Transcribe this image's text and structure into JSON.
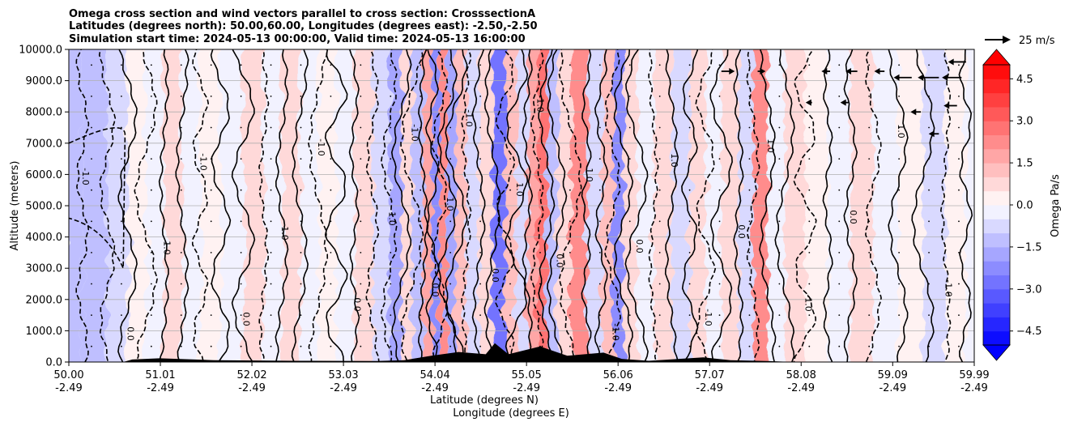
{
  "chart_data": {
    "type": "contour",
    "title_lines": [
      "Omega cross section and wind vectors parallel to cross section: CrosssectionA",
      "Latitudes (degrees north): 50.00,60.00, Longitudes (degrees east): -2.50,-2.50",
      "Simulation start time: 2024-05-13 00:00:00, Valid time: 2024-05-13 16:00:00"
    ],
    "ylabel": "Altitude (meters)",
    "xlabel_lines": [
      "Latitude (degrees N)",
      "Longitude (degrees E)"
    ],
    "xlim": [
      50.0,
      59.99
    ],
    "ylim": [
      0,
      10000
    ],
    "grid": "horizontal",
    "y_ticks": [
      0,
      1000,
      2000,
      3000,
      4000,
      5000,
      6000,
      7000,
      8000,
      9000,
      10000
    ],
    "y_tick_labels": [
      "0.0",
      "1000.0",
      "2000.0",
      "3000.0",
      "4000.0",
      "5000.0",
      "6000.0",
      "7000.0",
      "8000.0",
      "9000.0",
      "10000.0"
    ],
    "x_ticks": [
      {
        "lat": 50.0,
        "lat_label": "50.00",
        "lon_label": "-2.49"
      },
      {
        "lat": 51.01,
        "lat_label": "51.01",
        "lon_label": "-2.49"
      },
      {
        "lat": 52.02,
        "lat_label": "52.02",
        "lon_label": "-2.49"
      },
      {
        "lat": 53.03,
        "lat_label": "53.03",
        "lon_label": "-2.49"
      },
      {
        "lat": 54.04,
        "lat_label": "54.04",
        "lon_label": "-2.49"
      },
      {
        "lat": 55.05,
        "lat_label": "55.05",
        "lon_label": "-2.49"
      },
      {
        "lat": 56.06,
        "lat_label": "56.06",
        "lon_label": "-2.49"
      },
      {
        "lat": 57.07,
        "lat_label": "57.07",
        "lon_label": "-2.49"
      },
      {
        "lat": 58.08,
        "lat_label": "58.08",
        "lon_label": "-2.49"
      },
      {
        "lat": 59.09,
        "lat_label": "59.09",
        "lon_label": "-2.49"
      },
      {
        "lat": 59.99,
        "lat_label": "59.99",
        "lon_label": "-2.49"
      }
    ],
    "colorbar": {
      "label": "Omega Pa/s",
      "range": [
        -5.0,
        5.0
      ],
      "levels_step": 0.5,
      "extend": "both",
      "ticks": [
        -4.5,
        -3.0,
        -1.5,
        0.0,
        1.5,
        3.0,
        4.5
      ],
      "tick_labels": [
        "−4.5",
        "−3.0",
        "−1.5",
        "0.0",
        "1.5",
        "3.0",
        "4.5"
      ],
      "colormap": "bwr",
      "min_color": "#0000ff",
      "mid_color": "#ffffff",
      "max_color": "#ff0000"
    },
    "vector_key": {
      "label": "25 m/s",
      "speed": 25
    },
    "contour_labels": [
      "-1.0",
      "0.0",
      "1.0"
    ],
    "omega_bands": [
      {
        "lat": 50.0,
        "omega": -1.2
      },
      {
        "lat": 50.3,
        "omega": -1.5
      },
      {
        "lat": 50.55,
        "omega": -0.6
      },
      {
        "lat": 50.75,
        "omega": 0.3
      },
      {
        "lat": 50.95,
        "omega": -0.4
      },
      {
        "lat": 51.15,
        "omega": 0.6
      },
      {
        "lat": 51.35,
        "omega": -0.3
      },
      {
        "lat": 51.55,
        "omega": 0.2
      },
      {
        "lat": 51.8,
        "omega": -0.2
      },
      {
        "lat": 52.05,
        "omega": 0.5
      },
      {
        "lat": 52.25,
        "omega": -0.3
      },
      {
        "lat": 52.45,
        "omega": 0.7
      },
      {
        "lat": 52.65,
        "omega": -0.5
      },
      {
        "lat": 52.85,
        "omega": 0.4
      },
      {
        "lat": 53.05,
        "omega": -0.4
      },
      {
        "lat": 53.25,
        "omega": 0.6
      },
      {
        "lat": 53.45,
        "omega": -0.7
      },
      {
        "lat": 53.62,
        "omega": -2.0
      },
      {
        "lat": 53.72,
        "omega": 0.9
      },
      {
        "lat": 53.85,
        "omega": -1.2
      },
      {
        "lat": 53.97,
        "omega": 1.8
      },
      {
        "lat": 54.05,
        "omega": -2.2
      },
      {
        "lat": 54.13,
        "omega": 2.0
      },
      {
        "lat": 54.22,
        "omega": -1.6
      },
      {
        "lat": 54.32,
        "omega": 1.2
      },
      {
        "lat": 54.45,
        "omega": -0.8
      },
      {
        "lat": 54.6,
        "omega": 0.9
      },
      {
        "lat": 54.75,
        "omega": -2.6
      },
      {
        "lat": 54.88,
        "omega": 1.1
      },
      {
        "lat": 55.0,
        "omega": -1.0
      },
      {
        "lat": 55.12,
        "omega": 1.6
      },
      {
        "lat": 55.22,
        "omega": 2.5
      },
      {
        "lat": 55.32,
        "omega": -1.4
      },
      {
        "lat": 55.45,
        "omega": 0.8
      },
      {
        "lat": 55.62,
        "omega": 2.0
      },
      {
        "lat": 55.8,
        "omega": -0.9
      },
      {
        "lat": 55.95,
        "omega": 1.0
      },
      {
        "lat": 56.05,
        "omega": -2.4
      },
      {
        "lat": 56.18,
        "omega": 0.7
      },
      {
        "lat": 56.35,
        "omega": -0.4
      },
      {
        "lat": 56.55,
        "omega": 0.9
      },
      {
        "lat": 56.75,
        "omega": -0.6
      },
      {
        "lat": 56.95,
        "omega": 0.5
      },
      {
        "lat": 57.1,
        "omega": -0.5
      },
      {
        "lat": 57.3,
        "omega": 0.8
      },
      {
        "lat": 57.48,
        "omega": -0.6
      },
      {
        "lat": 57.62,
        "omega": 2.2
      },
      {
        "lat": 57.8,
        "omega": -0.3
      },
      {
        "lat": 58.0,
        "omega": 0.6
      },
      {
        "lat": 58.25,
        "omega": 0.3
      },
      {
        "lat": 58.5,
        "omega": -0.4
      },
      {
        "lat": 58.75,
        "omega": 0.5
      },
      {
        "lat": 59.0,
        "omega": -0.3
      },
      {
        "lat": 59.3,
        "omega": 0.3
      },
      {
        "lat": 59.55,
        "omega": -0.8
      },
      {
        "lat": 59.8,
        "omega": 0.2
      },
      {
        "lat": 59.99,
        "omega": -0.2
      }
    ],
    "terrain": [
      {
        "lat": 50.0,
        "alt": 0
      },
      {
        "lat": 50.6,
        "alt": 0
      },
      {
        "lat": 50.7,
        "alt": 80
      },
      {
        "lat": 51.0,
        "alt": 120
      },
      {
        "lat": 51.6,
        "alt": 60
      },
      {
        "lat": 52.5,
        "alt": 40
      },
      {
        "lat": 53.4,
        "alt": 30
      },
      {
        "lat": 53.7,
        "alt": 60
      },
      {
        "lat": 54.0,
        "alt": 200
      },
      {
        "lat": 54.3,
        "alt": 320
      },
      {
        "lat": 54.6,
        "alt": 250
      },
      {
        "lat": 54.7,
        "alt": 600
      },
      {
        "lat": 54.85,
        "alt": 250
      },
      {
        "lat": 55.2,
        "alt": 500
      },
      {
        "lat": 55.5,
        "alt": 200
      },
      {
        "lat": 55.9,
        "alt": 300
      },
      {
        "lat": 56.1,
        "alt": 100
      },
      {
        "lat": 56.4,
        "alt": 40
      },
      {
        "lat": 57.0,
        "alt": 150
      },
      {
        "lat": 57.3,
        "alt": 60
      },
      {
        "lat": 57.7,
        "alt": 30
      },
      {
        "lat": 58.0,
        "alt": 0
      },
      {
        "lat": 59.99,
        "alt": 0
      }
    ],
    "wind_vectors_upper_right": [
      {
        "lat": 57.2,
        "alt": 9300,
        "u": 12
      },
      {
        "lat": 57.6,
        "alt": 9300,
        "u": 5
      },
      {
        "lat": 58.4,
        "alt": 9300,
        "u": -6
      },
      {
        "lat": 58.7,
        "alt": 9300,
        "u": -10
      },
      {
        "lat": 59.0,
        "alt": 9300,
        "u": -8
      },
      {
        "lat": 59.3,
        "alt": 9100,
        "u": -18
      },
      {
        "lat": 59.6,
        "alt": 9100,
        "u": -22
      },
      {
        "lat": 59.85,
        "alt": 9100,
        "u": -20
      },
      {
        "lat": 59.9,
        "alt": 9600,
        "u": -18
      },
      {
        "lat": 58.2,
        "alt": 8300,
        "u": -3
      },
      {
        "lat": 58.6,
        "alt": 8300,
        "u": -5
      },
      {
        "lat": 59.4,
        "alt": 8000,
        "u": -8
      },
      {
        "lat": 59.8,
        "alt": 8200,
        "u": -12
      },
      {
        "lat": 59.6,
        "alt": 7300,
        "u": -8
      }
    ]
  }
}
